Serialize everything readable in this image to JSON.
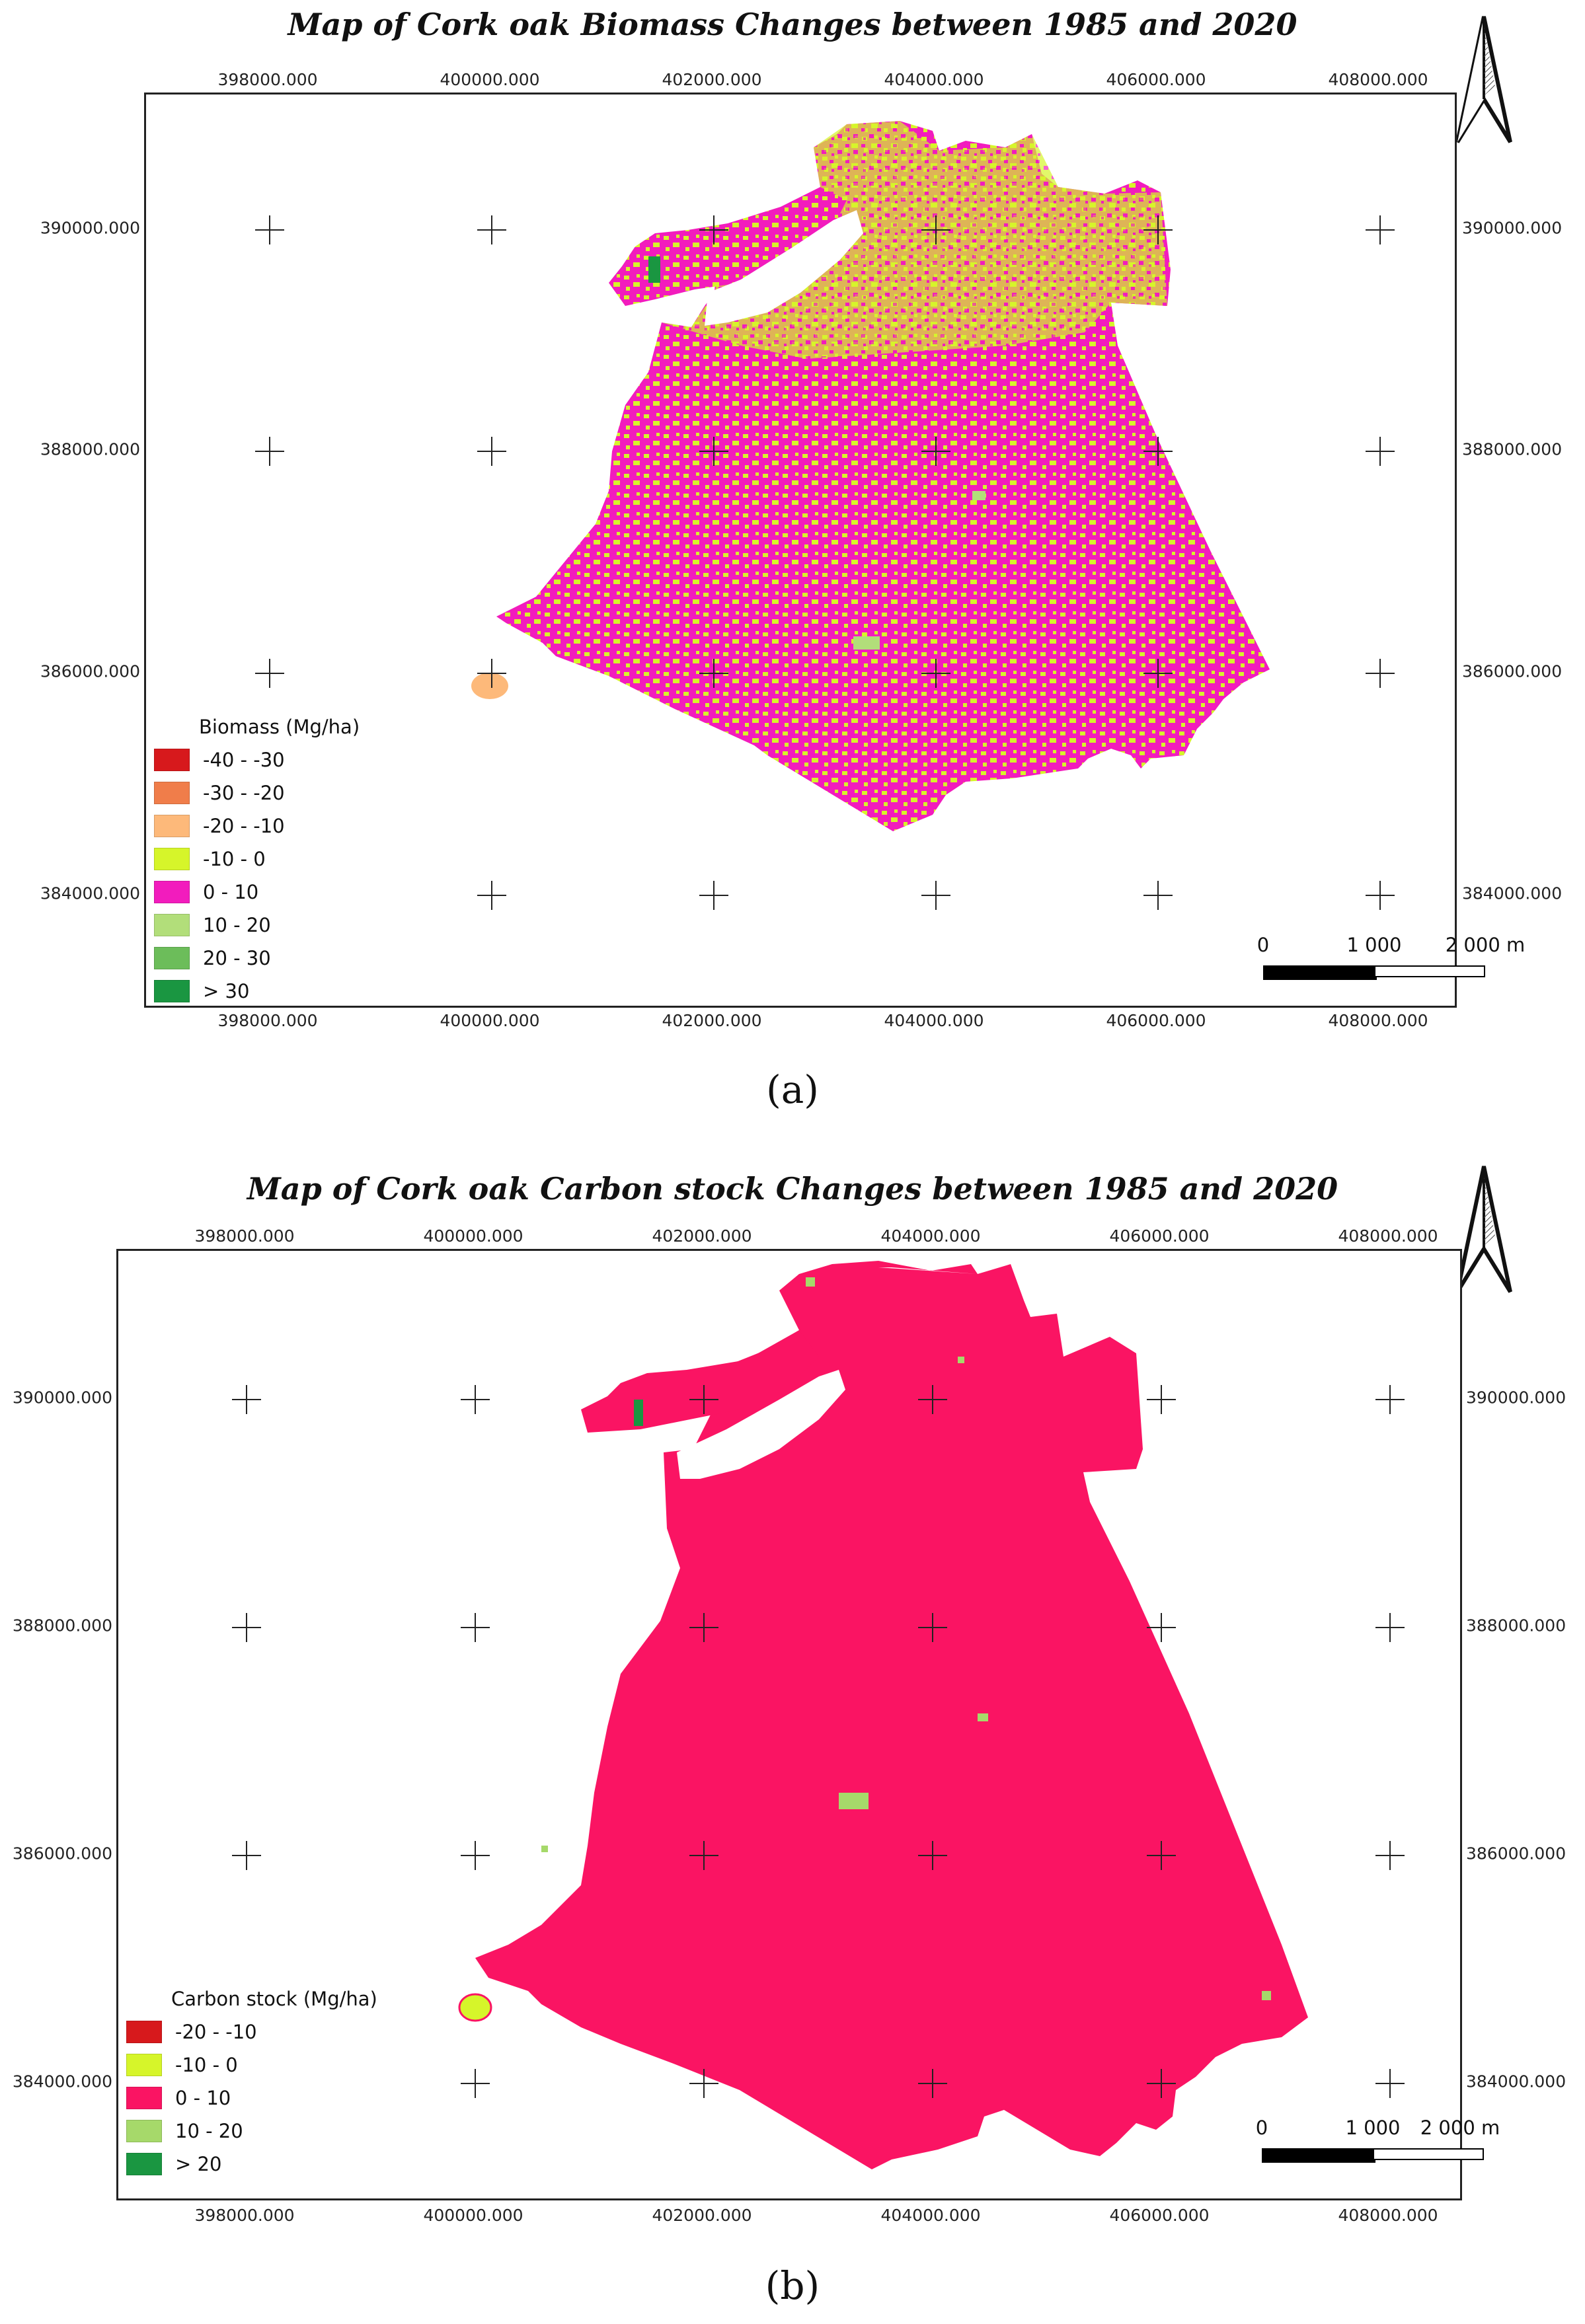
{
  "panels": [
    {
      "id": "a",
      "title": "Map of Cork oak Biomass Changes between 1985 and 2020",
      "label": "(a)",
      "x_ticks": [
        "398000.000",
        "400000.000",
        "402000.000",
        "404000.000",
        "406000.000",
        "408000.000"
      ],
      "y_ticks": [
        "390000.000",
        "388000.000",
        "386000.000",
        "384000.000"
      ],
      "legend_title": "Biomass (Mg/ha)",
      "legend": [
        {
          "label": "-40 - -30",
          "color": "#d7191c"
        },
        {
          "label": "-30 - -20",
          "color": "#f07d4a"
        },
        {
          "label": "-20 - -10",
          "color": "#fdb97a"
        },
        {
          "label": "-10 - 0",
          "color": "#d6f52a"
        },
        {
          "label": "0 - 10",
          "color": "#f21cbd"
        },
        {
          "label": "10 - 20",
          "color": "#b2de7a"
        },
        {
          "label": "20 - 30",
          "color": "#6cbd5a"
        },
        {
          "label": "> 30",
          "color": "#1a9641"
        }
      ],
      "scale_labels": [
        "0",
        "1 000",
        "2 000 m"
      ]
    },
    {
      "id": "b",
      "title": "Map of Cork oak Carbon stock Changes between 1985 and 2020",
      "label": "(b)",
      "x_ticks": [
        "398000.000",
        "400000.000",
        "402000.000",
        "404000.000",
        "406000.000",
        "408000.000"
      ],
      "y_ticks": [
        "390000.000",
        "388000.000",
        "386000.000",
        "384000.000"
      ],
      "legend_title": "Carbon stock (Mg/ha)",
      "legend": [
        {
          "label": "-20 - -10",
          "color": "#d7191c"
        },
        {
          "label": "-10 - 0",
          "color": "#d6f52a"
        },
        {
          "label": "0 - 10",
          "color": "#fa1463"
        },
        {
          "label": "10 - 20",
          "color": "#a6d96a"
        },
        {
          "label": "> 20",
          "color": "#1a9641"
        }
      ],
      "scale_labels": [
        "0",
        "1 000",
        "2 000 m"
      ]
    }
  ],
  "north_arrow": "north-arrow-icon"
}
